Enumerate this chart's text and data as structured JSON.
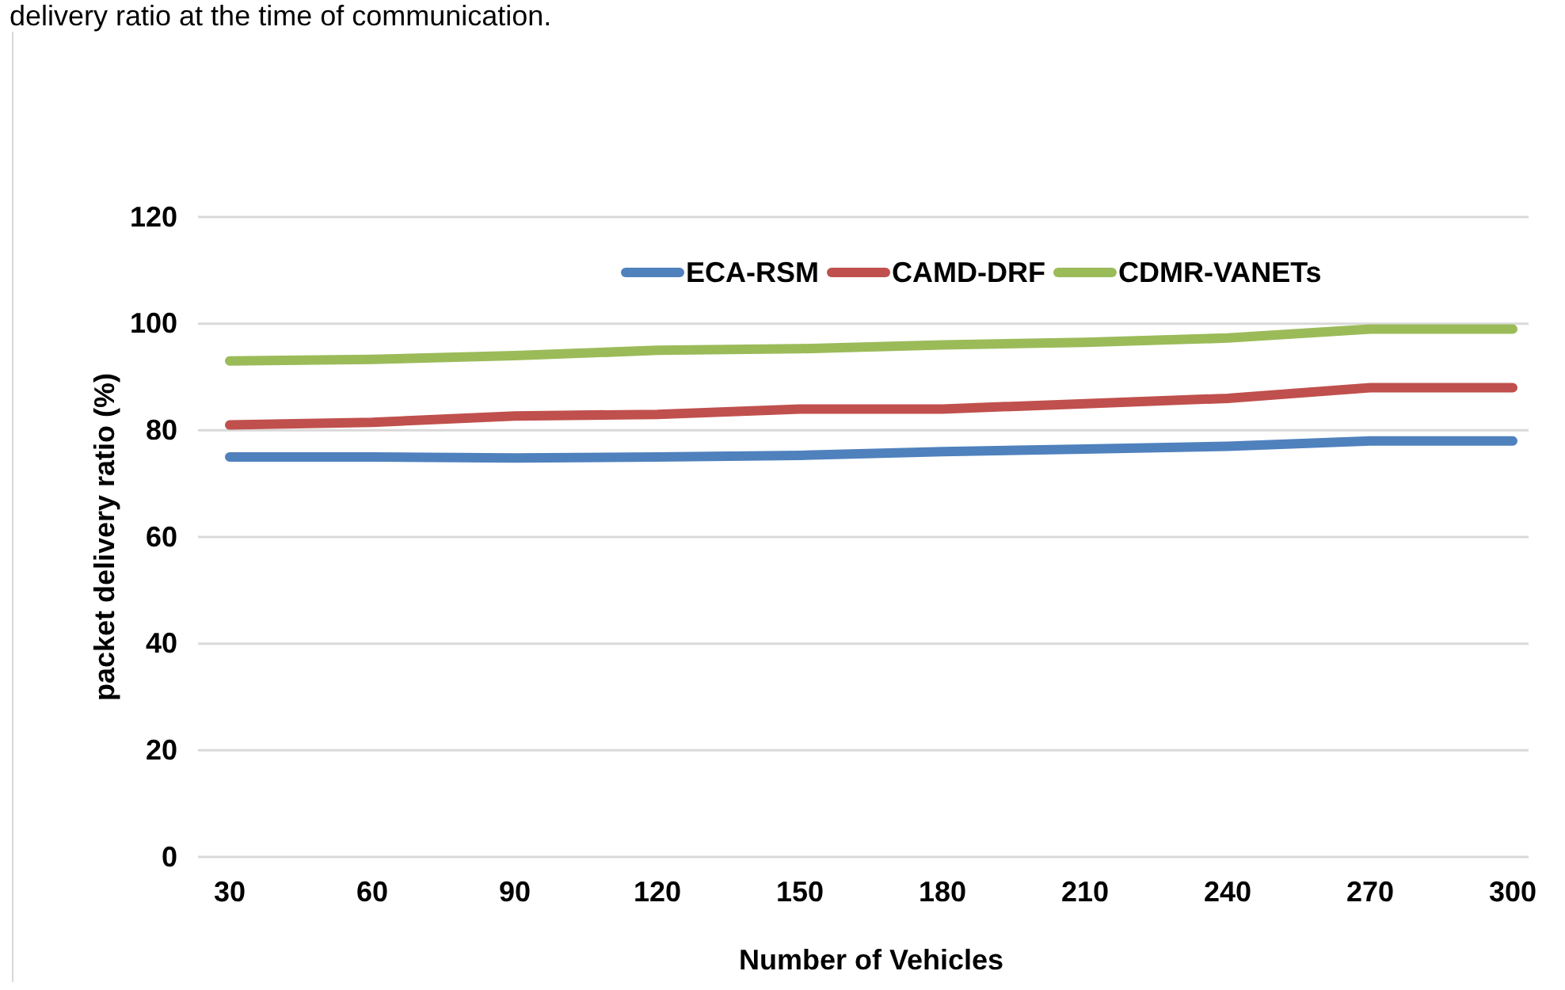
{
  "chart_data": {
    "type": "line",
    "xlabel": "Number of Vehicles",
    "ylabel": "packet delivery ratio (%)",
    "annotations": [
      "delivery ratio at the time of communication."
    ],
    "categories": [
      "30",
      "60",
      "90",
      "120",
      "150",
      "180",
      "210",
      "240",
      "270",
      "300"
    ],
    "series": [
      {
        "name": "ECA-RSM",
        "color": "#4f81bd",
        "values": [
          75,
          75,
          74.8,
          75,
          75.3,
          76,
          76.5,
          77,
          78,
          78
        ]
      },
      {
        "name": "CAMD-DRF",
        "color": "#c0504d",
        "values": [
          81,
          81.5,
          82.7,
          83,
          84,
          84,
          85,
          86,
          88,
          88
        ]
      },
      {
        "name": "CDMR-VANETs",
        "color": "#9bbb59",
        "values": [
          93,
          93.3,
          94,
          95,
          95.3,
          96,
          96.5,
          97.3,
          99,
          99
        ]
      }
    ],
    "ylim": [
      0,
      120
    ],
    "yticks": [
      0,
      20,
      40,
      60,
      80,
      100,
      120
    ],
    "grid": "y",
    "legend": "top right",
    "marker": "none",
    "line_style": "solid"
  }
}
